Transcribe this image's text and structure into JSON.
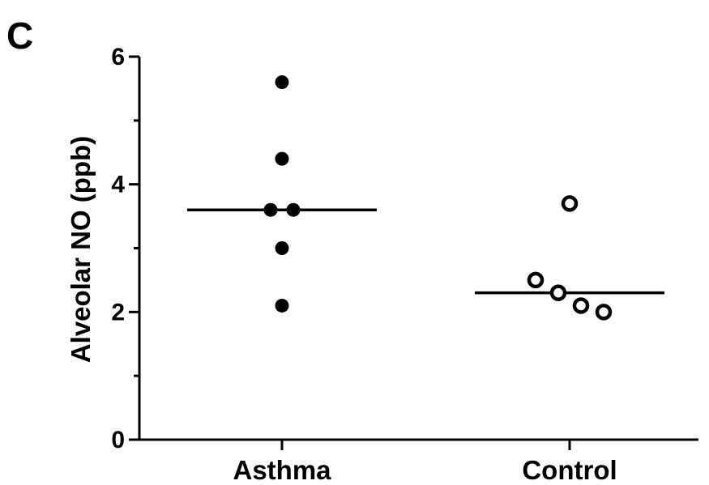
{
  "panel_label": "C",
  "colors": {
    "ink": "#000000",
    "background": "#ffffff"
  },
  "chart_data": {
    "type": "scatter",
    "title": "",
    "xlabel": "",
    "ylabel": "Alveolar NO (ppb)",
    "categories": [
      "Asthma",
      "Control"
    ],
    "ylim": [
      0,
      6
    ],
    "yticks": [
      0,
      2,
      4,
      6
    ],
    "grid": false,
    "legend": "none",
    "series": [
      {
        "category": "Asthma",
        "marker": "filled-circle",
        "values": [
          5.6,
          4.4,
          3.6,
          3.6,
          3.0,
          2.1
        ],
        "median": 3.6
      },
      {
        "category": "Control",
        "marker": "open-circle",
        "values": [
          3.7,
          2.5,
          2.3,
          2.1,
          2.0
        ],
        "median": 2.3
      }
    ]
  }
}
